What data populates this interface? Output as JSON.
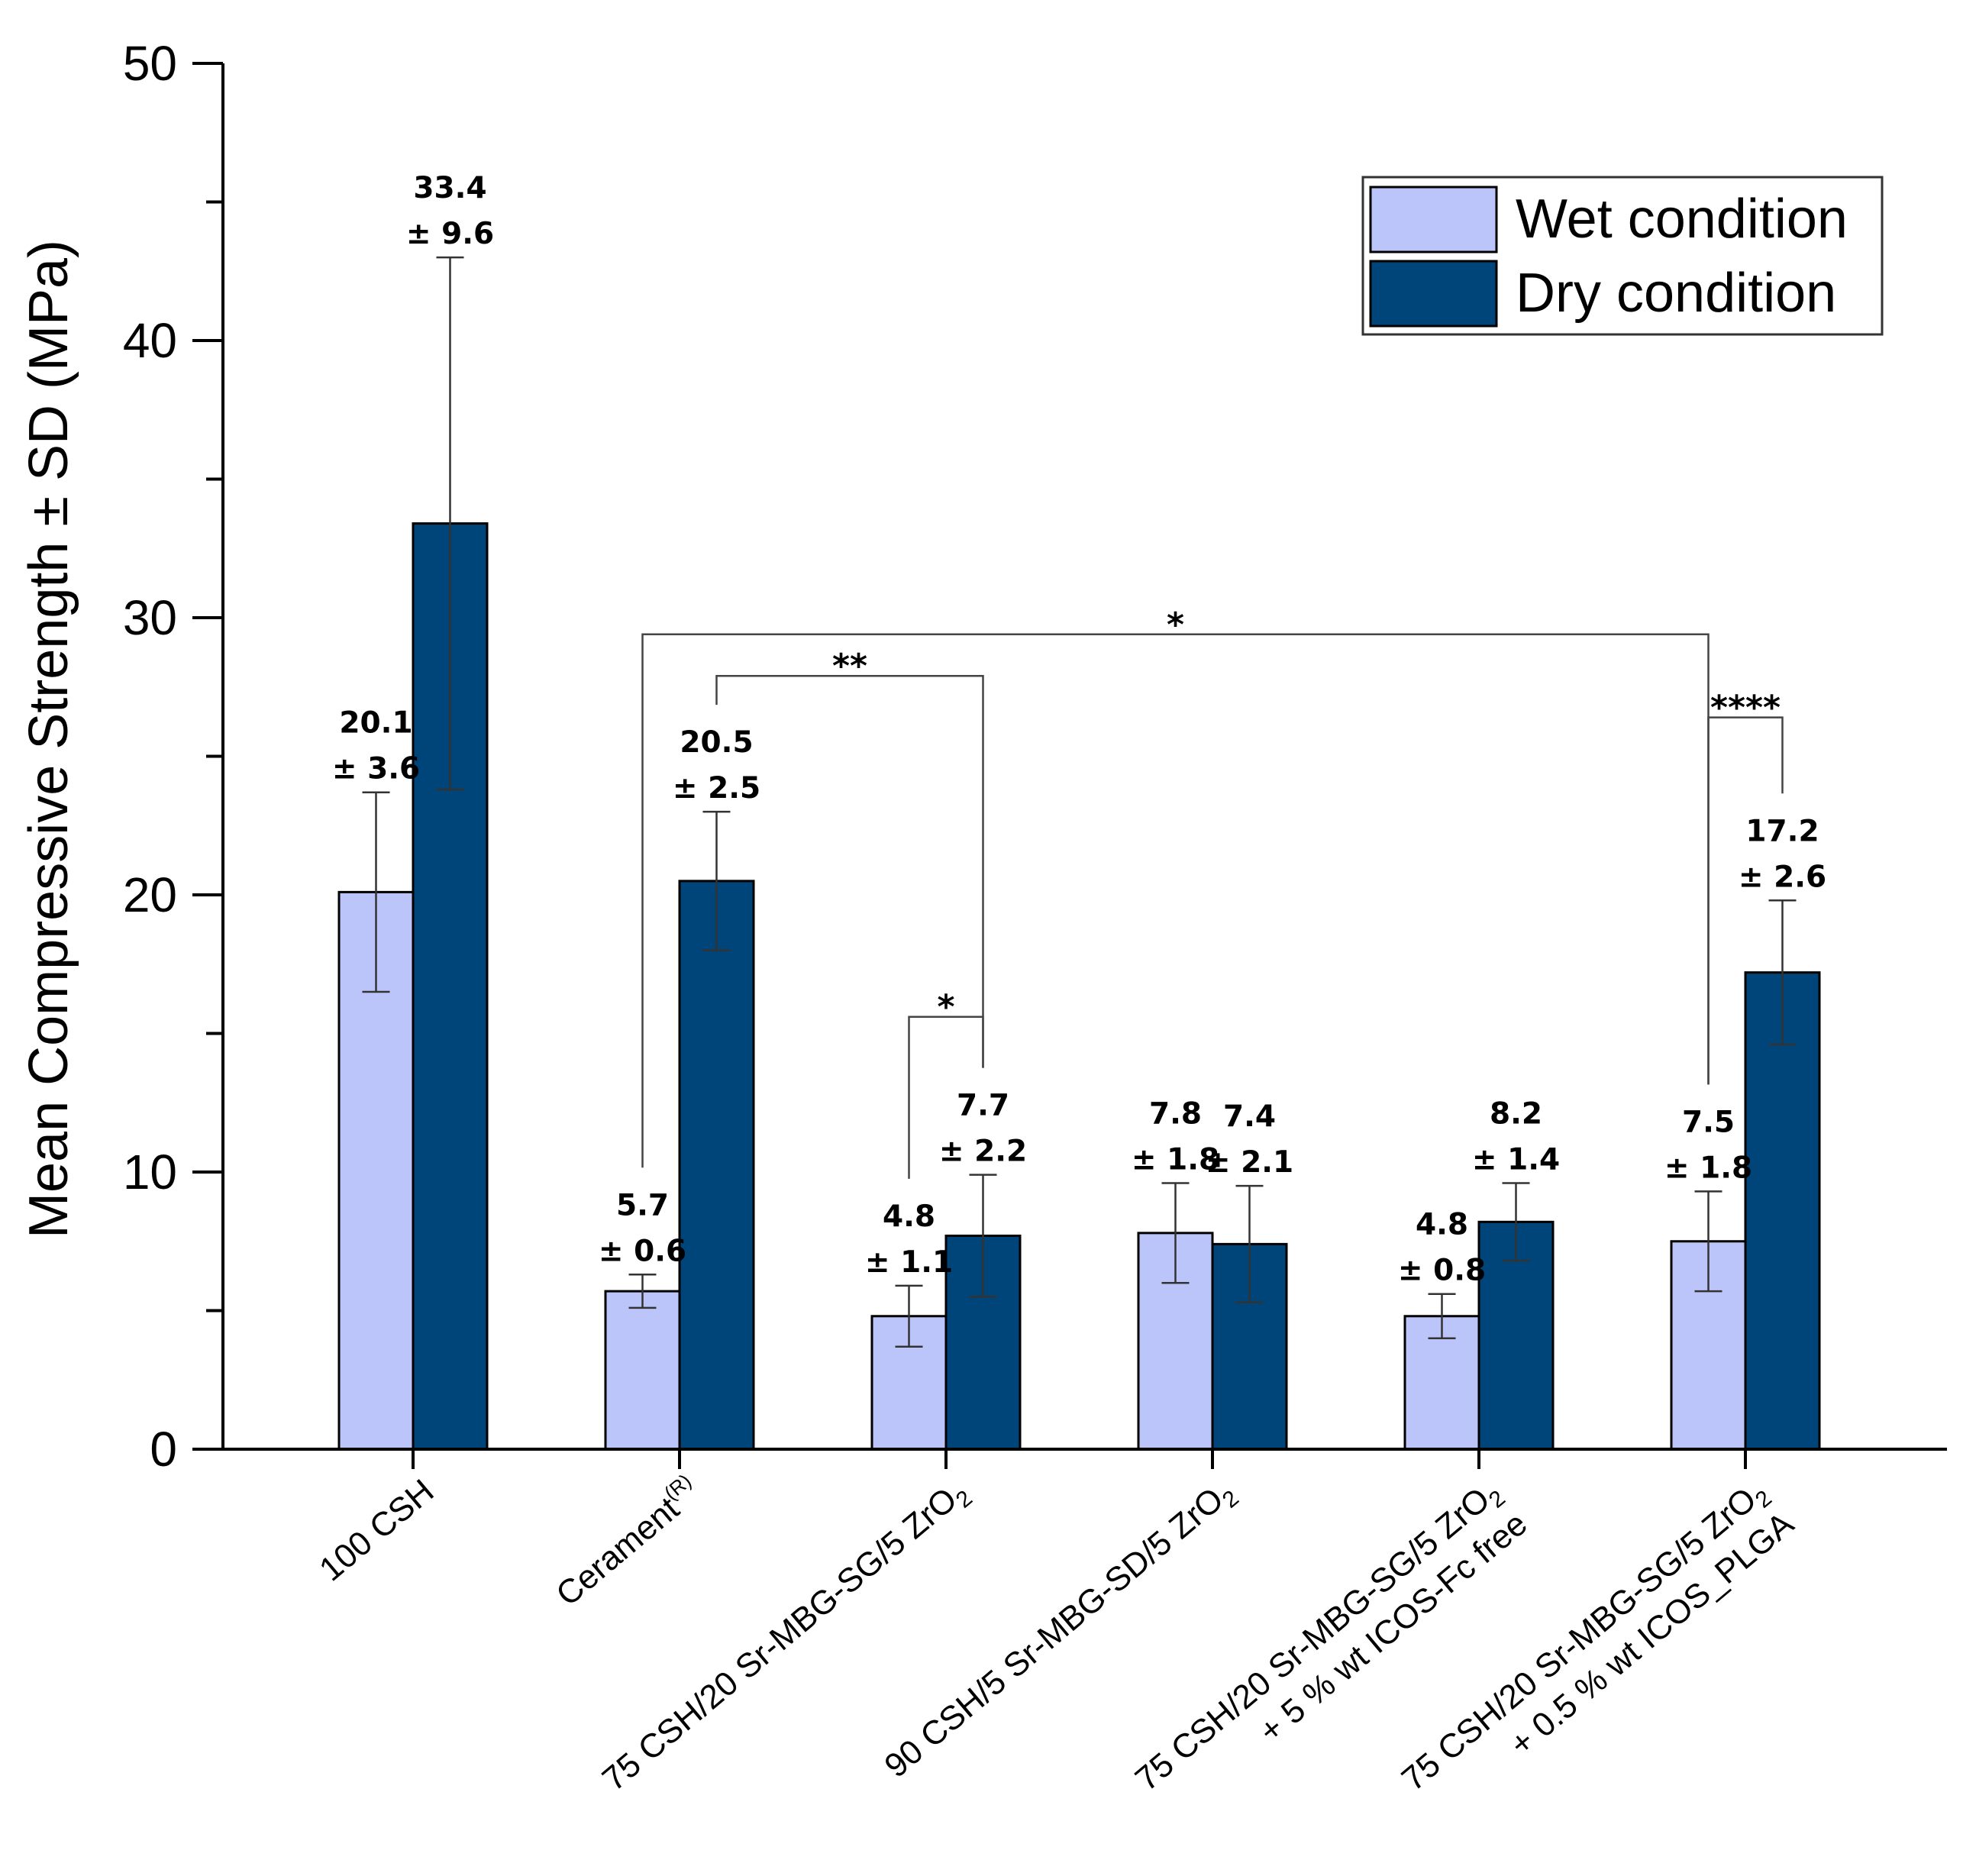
{
  "chart_data": {
    "type": "bar",
    "title": "",
    "xlabel": "",
    "ylabel": "Mean Compressive Strength ± SD (MPa)",
    "ylim": [
      0,
      50
    ],
    "yticks": [
      "0",
      "10",
      "20",
      "30",
      "40",
      "50"
    ],
    "grid": false,
    "legend_position": "top-right",
    "categories": [
      {
        "lines": [
          "100 CSH"
        ]
      },
      {
        "lines": [
          "Cerament",
          "(R)"
        ]
      },
      {
        "lines": [
          "75 CSH/20 Sr-MBG-SG/5 ZrO",
          "2"
        ]
      },
      {
        "lines": [
          "90 CSH/5 Sr-MBG-SD/5 ZrO",
          "2"
        ]
      },
      {
        "lines": [
          "75 CSH/20 Sr-MBG-SG/5 ZrO",
          "2",
          "+ 5 % wt ICOS-Fc free"
        ]
      },
      {
        "lines": [
          "75 CSH/20 Sr-MBG-SG/5 ZrO",
          "2",
          "+ 0.5 % wt ICOS_PLGA"
        ]
      }
    ],
    "series": [
      {
        "name": "Wet condition",
        "color": "#bcc5fa",
        "values": [
          20.1,
          5.7,
          4.8,
          7.8,
          4.8,
          7.5
        ],
        "errors": [
          3.6,
          0.6,
          1.1,
          1.8,
          0.8,
          1.8
        ],
        "labels": [
          [
            "20.1",
            "± 3.6"
          ],
          [
            "5.7",
            "± 0.6"
          ],
          [
            "4.8",
            "± 1.1"
          ],
          [
            "7.8",
            "± 1.8"
          ],
          [
            "4.8",
            "± 0.8"
          ],
          [
            "7.5",
            "± 1.8"
          ]
        ]
      },
      {
        "name": "Dry condition",
        "color": "#00457a",
        "values": [
          33.4,
          20.5,
          7.7,
          7.4,
          8.2,
          17.2
        ],
        "errors": [
          9.6,
          2.5,
          2.2,
          2.1,
          1.4,
          2.6
        ],
        "labels": [
          [
            "33.4",
            "± 9.6"
          ],
          [
            "20.5",
            "± 2.5"
          ],
          [
            "7.7",
            "± 2.2"
          ],
          [
            "7.4",
            "± 2.1"
          ],
          [
            "8.2",
            "± 1.4"
          ],
          [
            "17.2",
            "± 2.6"
          ]
        ]
      }
    ],
    "significance": [
      {
        "label": "*",
        "from": {
          "category": 1,
          "series": 0
        },
        "to": {
          "category": 5,
          "series": 0
        },
        "bracket_value": 29.4
      },
      {
        "label": "**",
        "from": {
          "category": 1,
          "series": 1
        },
        "to": {
          "category": 2,
          "series": 1
        },
        "bracket_value": 27.9
      },
      {
        "label": "*",
        "from": {
          "category": 2,
          "series": 0
        },
        "to": {
          "category": 2,
          "series": 1
        },
        "bracket_value": 15.6
      },
      {
        "label": "****",
        "from": {
          "category": 5,
          "series": 0
        },
        "to": {
          "category": 5,
          "series": 1
        },
        "bracket_value": 26.4
      }
    ]
  }
}
